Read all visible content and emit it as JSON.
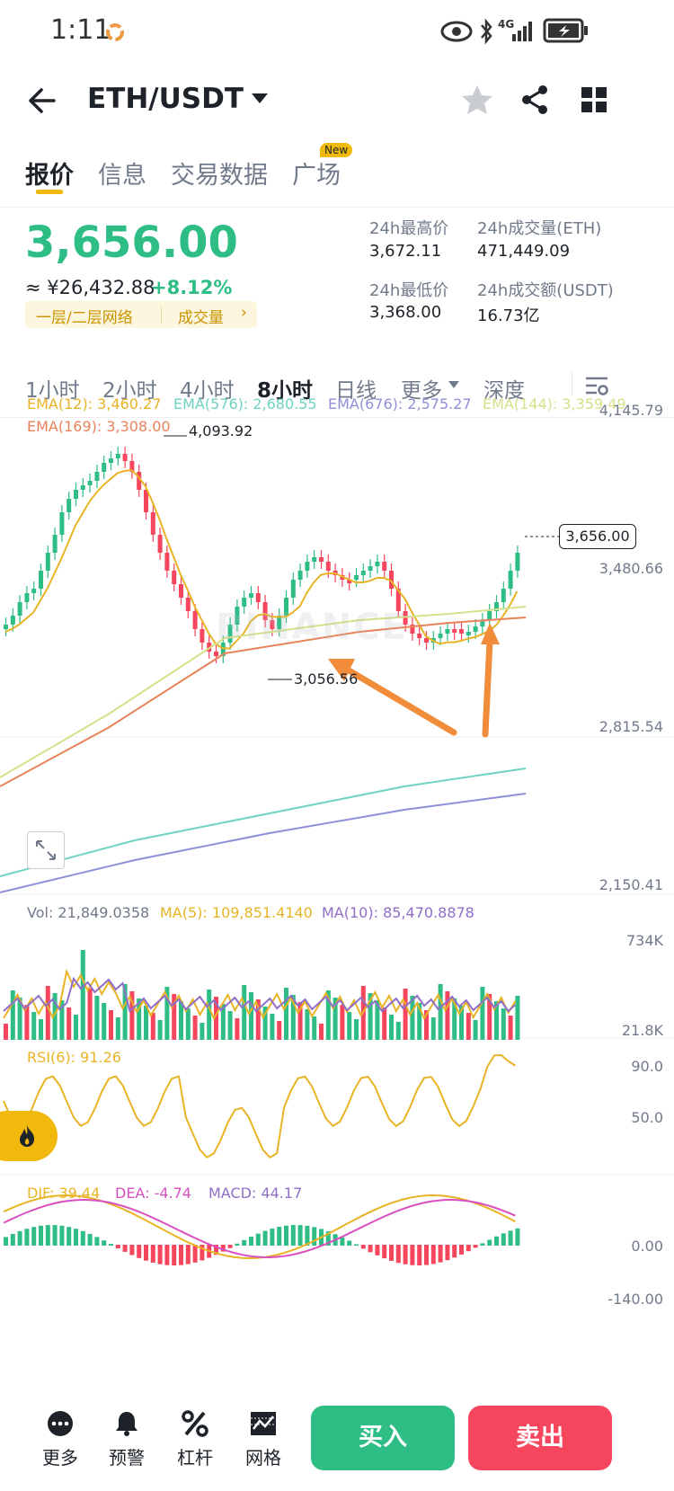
{
  "status_bar": {
    "time": "1:11",
    "network": "4G"
  },
  "header": {
    "pair": "ETH/USDT"
  },
  "tabs": [
    {
      "label": "报价",
      "active": true
    },
    {
      "label": "信息"
    },
    {
      "label": "交易数据"
    },
    {
      "label": "广场",
      "badge": "New"
    }
  ],
  "price": {
    "last": "3,656.00",
    "cny": "≈ ¥26,432.88",
    "change": "+8.12%",
    "tags": [
      "一层/二层网络",
      "成交量"
    ],
    "stats": [
      {
        "label": "24h最高价",
        "value": "3,672.11"
      },
      {
        "label": "24h成交量(ETH)",
        "value": "471,449.09"
      },
      {
        "label": "24h最低价",
        "value": "3,368.00"
      },
      {
        "label": "24h成交额(USDT)",
        "value": "16.73亿"
      }
    ]
  },
  "intervals": [
    {
      "label": "1小时"
    },
    {
      "label": "2小时"
    },
    {
      "label": "4小时"
    },
    {
      "label": "8小时",
      "active": true
    },
    {
      "label": "日线"
    },
    {
      "label": "更多"
    },
    {
      "label": "深度"
    }
  ],
  "chart_data": {
    "type": "candlestick",
    "watermark": "BINANCE",
    "legend": [
      {
        "label": "EMA(12): 3,460.27",
        "color": "#e8b425"
      },
      {
        "label": "EMA(576): 2,680.55",
        "color": "#6fd3c2"
      },
      {
        "label": "EMA(676): 2,575.27",
        "color": "#8f8fd8"
      },
      {
        "label": "EMA(144): 3,359.49",
        "color": "#d6e08a"
      },
      {
        "label": "EMA(169): 3,308.00",
        "color": "#e8835a"
      }
    ],
    "price_axis": [
      "4,145.79",
      "3,480.66",
      "2,815.54",
      "2,150.41"
    ],
    "current_price_label": "3,656.00",
    "high_marker": "4,093.92",
    "low_marker": "3,056.56",
    "volume": {
      "legend": [
        {
          "label": "Vol: 21,849.0358",
          "color": "#707a8a"
        },
        {
          "label": "MA(5): 109,851.4140",
          "color": "#e8b425"
        },
        {
          "label": "MA(10): 85,470.8878",
          "color": "#8f6fc8"
        }
      ],
      "axis": [
        "734K",
        "21.8K"
      ]
    },
    "rsi": {
      "legend": [
        {
          "label": "RSI(6): 91.26",
          "color": "#e8b425"
        }
      ],
      "axis": [
        "90.0",
        "50.0"
      ]
    },
    "macd": {
      "legend": [
        {
          "label": "DIF: 39.44",
          "color": "#e8b425"
        },
        {
          "label": "DEA: -4.74",
          "color": "#d94fbf"
        },
        {
          "label": "MACD: 44.17",
          "color": "#8f6fc8"
        }
      ],
      "axis": [
        "0.00",
        "-140.00"
      ]
    }
  },
  "bottom_bar": {
    "items": [
      {
        "label": "更多",
        "icon": "more-icon"
      },
      {
        "label": "预警",
        "icon": "bell-icon"
      },
      {
        "label": "杠杆",
        "icon": "percent-icon"
      },
      {
        "label": "网格",
        "icon": "grid-trading-icon"
      }
    ],
    "buy": "买入",
    "sell": "卖出"
  },
  "colors": {
    "up": "#2ebd85",
    "down": "#f6465d",
    "accent": "#f0b90b"
  }
}
